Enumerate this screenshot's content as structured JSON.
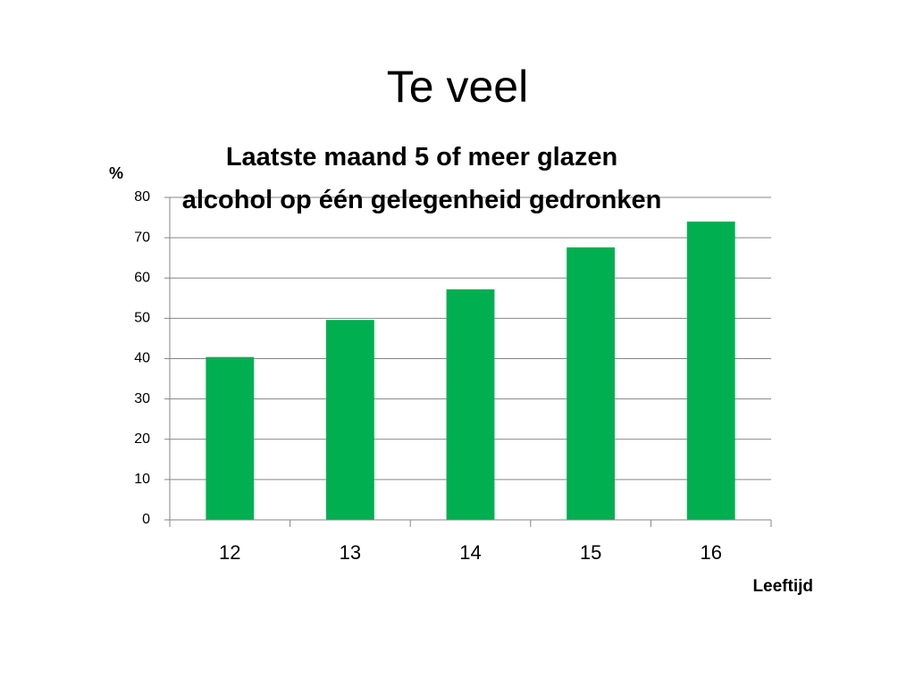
{
  "slide_title": "Te veel",
  "chart_data": {
    "type": "bar",
    "title": "Laatste maand 5 of meer glazen alcohol op één gelegenheid gedronken",
    "y_label": "%",
    "x_label": "Leeftijd",
    "categories": [
      "12",
      "13",
      "14",
      "15",
      "16"
    ],
    "values": [
      40.4,
      49.6,
      57.2,
      67.6,
      74.0
    ],
    "color": "#00b050",
    "ylim": [
      0,
      80
    ],
    "yticks": [
      0,
      10,
      20,
      30,
      40,
      50,
      60,
      70,
      80
    ],
    "grid": true
  }
}
